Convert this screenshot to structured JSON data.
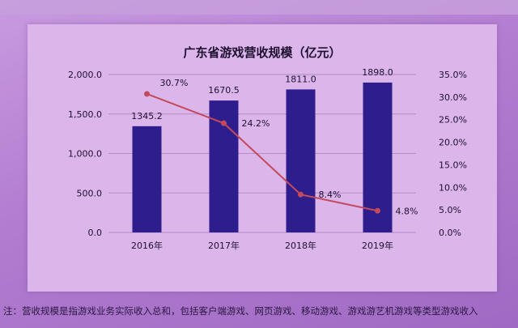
{
  "chart_data": {
    "type": "bar",
    "title": "广东省游戏营收规模（亿元）",
    "categories": [
      "2016年",
      "2017年",
      "2018年",
      "2019年"
    ],
    "series": [
      {
        "type": "bar",
        "values": [
          1345.2,
          1670.5,
          1811.0,
          1898.0
        ],
        "labels": [
          "1345.2",
          "1670.5",
          "1811.0",
          "1898.0"
        ]
      },
      {
        "type": "line",
        "values": [
          30.7,
          24.2,
          8.4,
          4.8
        ],
        "labels": [
          "30.7%",
          "24.2%",
          "8.4%",
          "4.8%"
        ]
      }
    ],
    "ylim": [
      0,
      2000
    ],
    "y_ticks": [
      "0.0",
      "500.0",
      "1,000.0",
      "1,500.0",
      "2,000.0"
    ],
    "y2lim": [
      0,
      35
    ],
    "y2_ticks": [
      "0.0%",
      "5.0%",
      "10.0%",
      "15.0%",
      "20.0%",
      "25.0%",
      "30.0%",
      "35.0%"
    ],
    "grid": true,
    "colors": {
      "bar": "#2e1d8c",
      "line": "#c24a5c"
    }
  },
  "note": "注：营收规模是指游戏业务实际收入总和，包括客户端游戏、网页游戏、移动游戏、游戏游艺机游戏等类型游戏收入"
}
